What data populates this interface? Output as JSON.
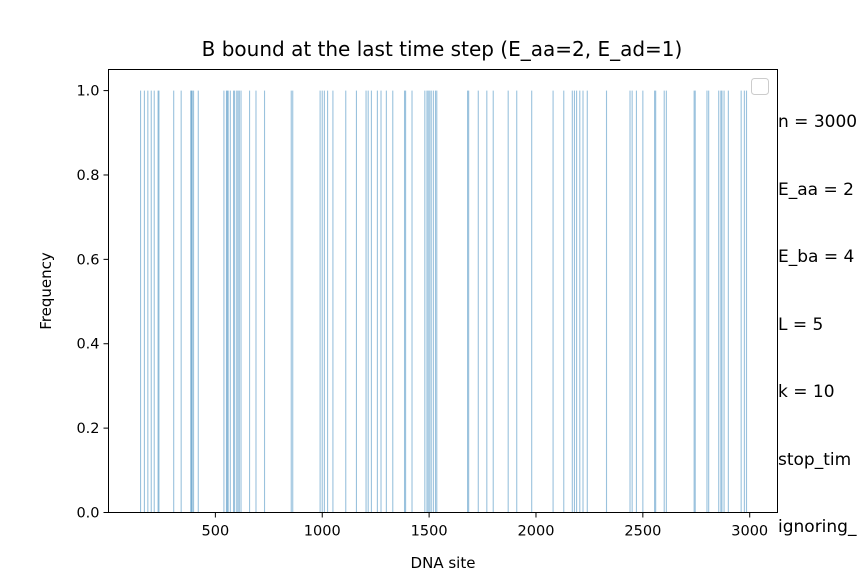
{
  "chart_data": {
    "type": "bar",
    "title": "B bound at the last time step (E_aa=2, E_ad=1)",
    "xlabel": "DNA site",
    "ylabel": "Frequency",
    "xlim": [
      0,
      3130
    ],
    "ylim": [
      0.0,
      1.05
    ],
    "xticks": [
      500,
      1000,
      1500,
      2000,
      2500,
      3000
    ],
    "yticks": [
      0.0,
      0.2,
      0.4,
      0.6,
      0.8,
      1.0
    ],
    "ytick_labels": [
      "0.0",
      "0.2",
      "0.4",
      "0.6",
      "0.8",
      "1.0"
    ],
    "bar_color": "#1f77b4",
    "grid": false,
    "legend": "top-right (empty)",
    "x": [
      150,
      168,
      184,
      200,
      214,
      232,
      236,
      305,
      340,
      385,
      388,
      392,
      398,
      420,
      540,
      552,
      556,
      560,
      570,
      585,
      590,
      600,
      606,
      612,
      620,
      660,
      690,
      730,
      855,
      862,
      990,
      1000,
      1010,
      1025,
      1050,
      1110,
      1160,
      1205,
      1215,
      1230,
      1258,
      1275,
      1300,
      1330,
      1385,
      1390,
      1420,
      1480,
      1490,
      1496,
      1503,
      1510,
      1520,
      1530,
      1536,
      1680,
      1685,
      1730,
      1770,
      1800,
      1870,
      1910,
      1980,
      2080,
      2130,
      2170,
      2180,
      2190,
      2205,
      2220,
      2240,
      2330,
      2440,
      2450,
      2470,
      2500,
      2555,
      2560,
      2600,
      2610,
      2740,
      2745,
      2800,
      2808,
      2855,
      2865,
      2870,
      2880,
      2900,
      2960,
      2975,
      2985
    ],
    "values": [
      1.0,
      1.0,
      1.0,
      1.0,
      1.0,
      1.0,
      1.0,
      1.0,
      1.0,
      1.0,
      1.0,
      1.0,
      1.0,
      1.0,
      1.0,
      1.0,
      1.0,
      1.0,
      1.0,
      1.0,
      1.0,
      1.0,
      1.0,
      1.0,
      1.0,
      1.0,
      1.0,
      1.0,
      1.0,
      1.0,
      1.0,
      1.0,
      1.0,
      1.0,
      1.0,
      1.0,
      1.0,
      1.0,
      1.0,
      1.0,
      1.0,
      1.0,
      1.0,
      1.0,
      1.0,
      1.0,
      1.0,
      1.0,
      1.0,
      1.0,
      1.0,
      1.0,
      1.0,
      1.0,
      1.0,
      1.0,
      1.0,
      1.0,
      1.0,
      1.0,
      1.0,
      1.0,
      1.0,
      1.0,
      1.0,
      1.0,
      1.0,
      1.0,
      1.0,
      1.0,
      1.0,
      1.0,
      1.0,
      1.0,
      1.0,
      1.0,
      1.0,
      1.0,
      1.0,
      1.0,
      1.0,
      1.0,
      1.0,
      1.0,
      1.0,
      1.0,
      1.0,
      1.0,
      1.0,
      1.0,
      1.0,
      1.0
    ],
    "annotation_lines": [
      "n = 3000",
      "E_aa = 2",
      "E_ba = 4",
      "L = 5",
      "k = 10",
      "stop_tim",
      "ignoring_"
    ]
  }
}
